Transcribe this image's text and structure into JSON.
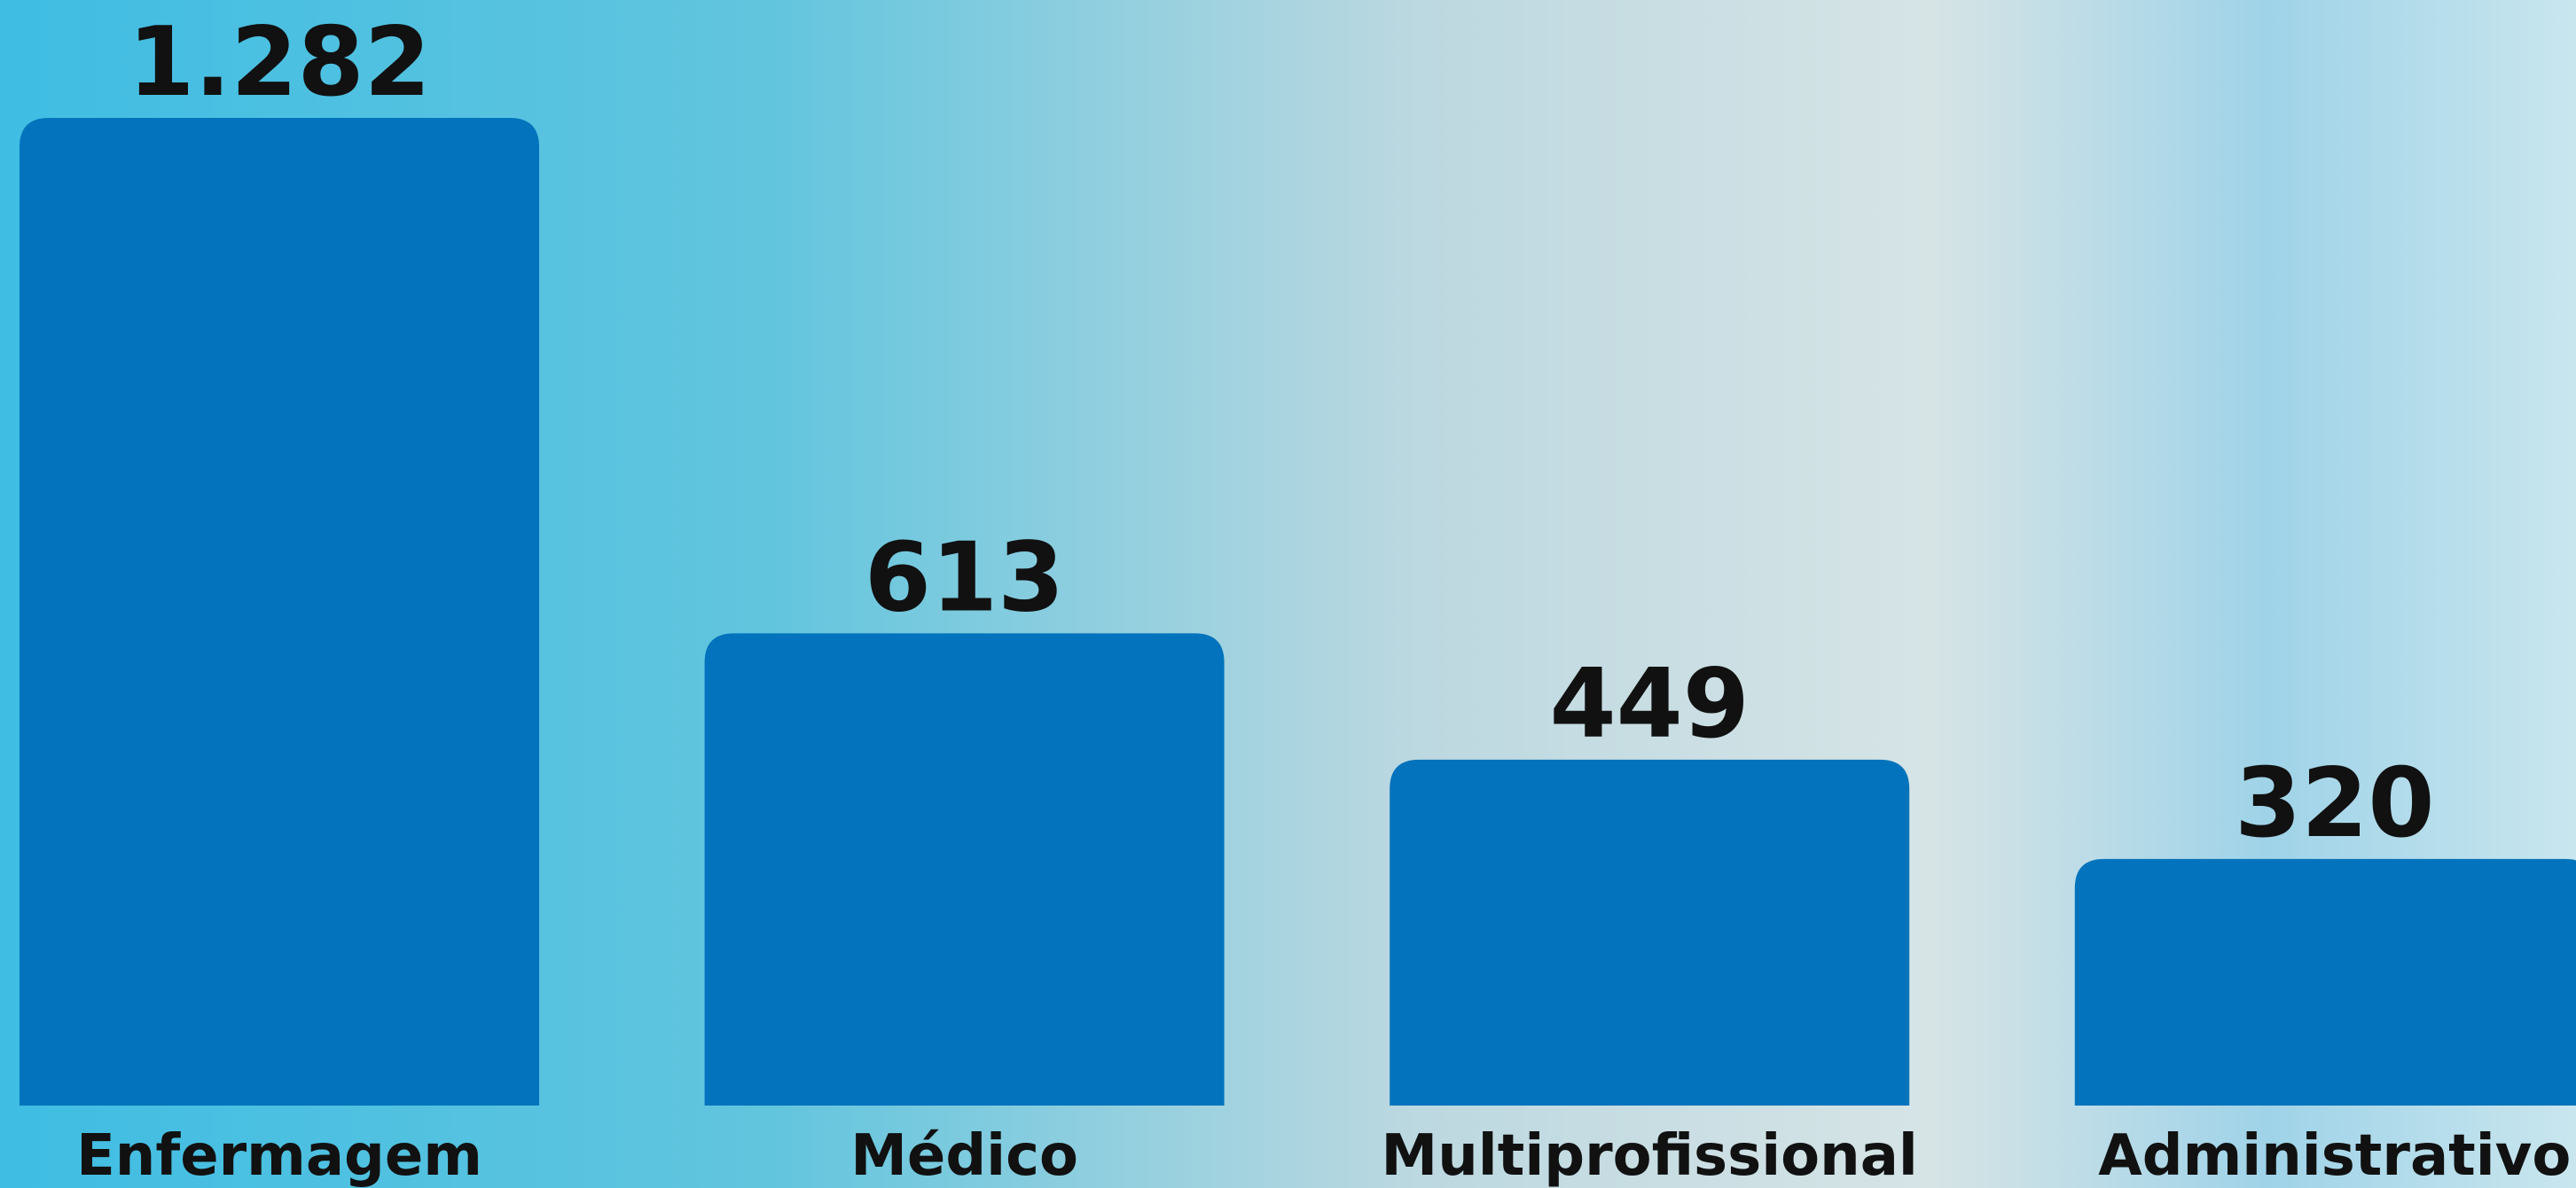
{
  "chart_data": {
    "type": "bar",
    "categories": [
      "Enfermagem",
      "Médico",
      "Multiprofissional",
      "Administrativo"
    ],
    "values": [
      1282,
      613,
      449,
      320
    ],
    "value_labels": [
      "1.282",
      "613",
      "449",
      "320"
    ],
    "color": "#0273bc"
  }
}
